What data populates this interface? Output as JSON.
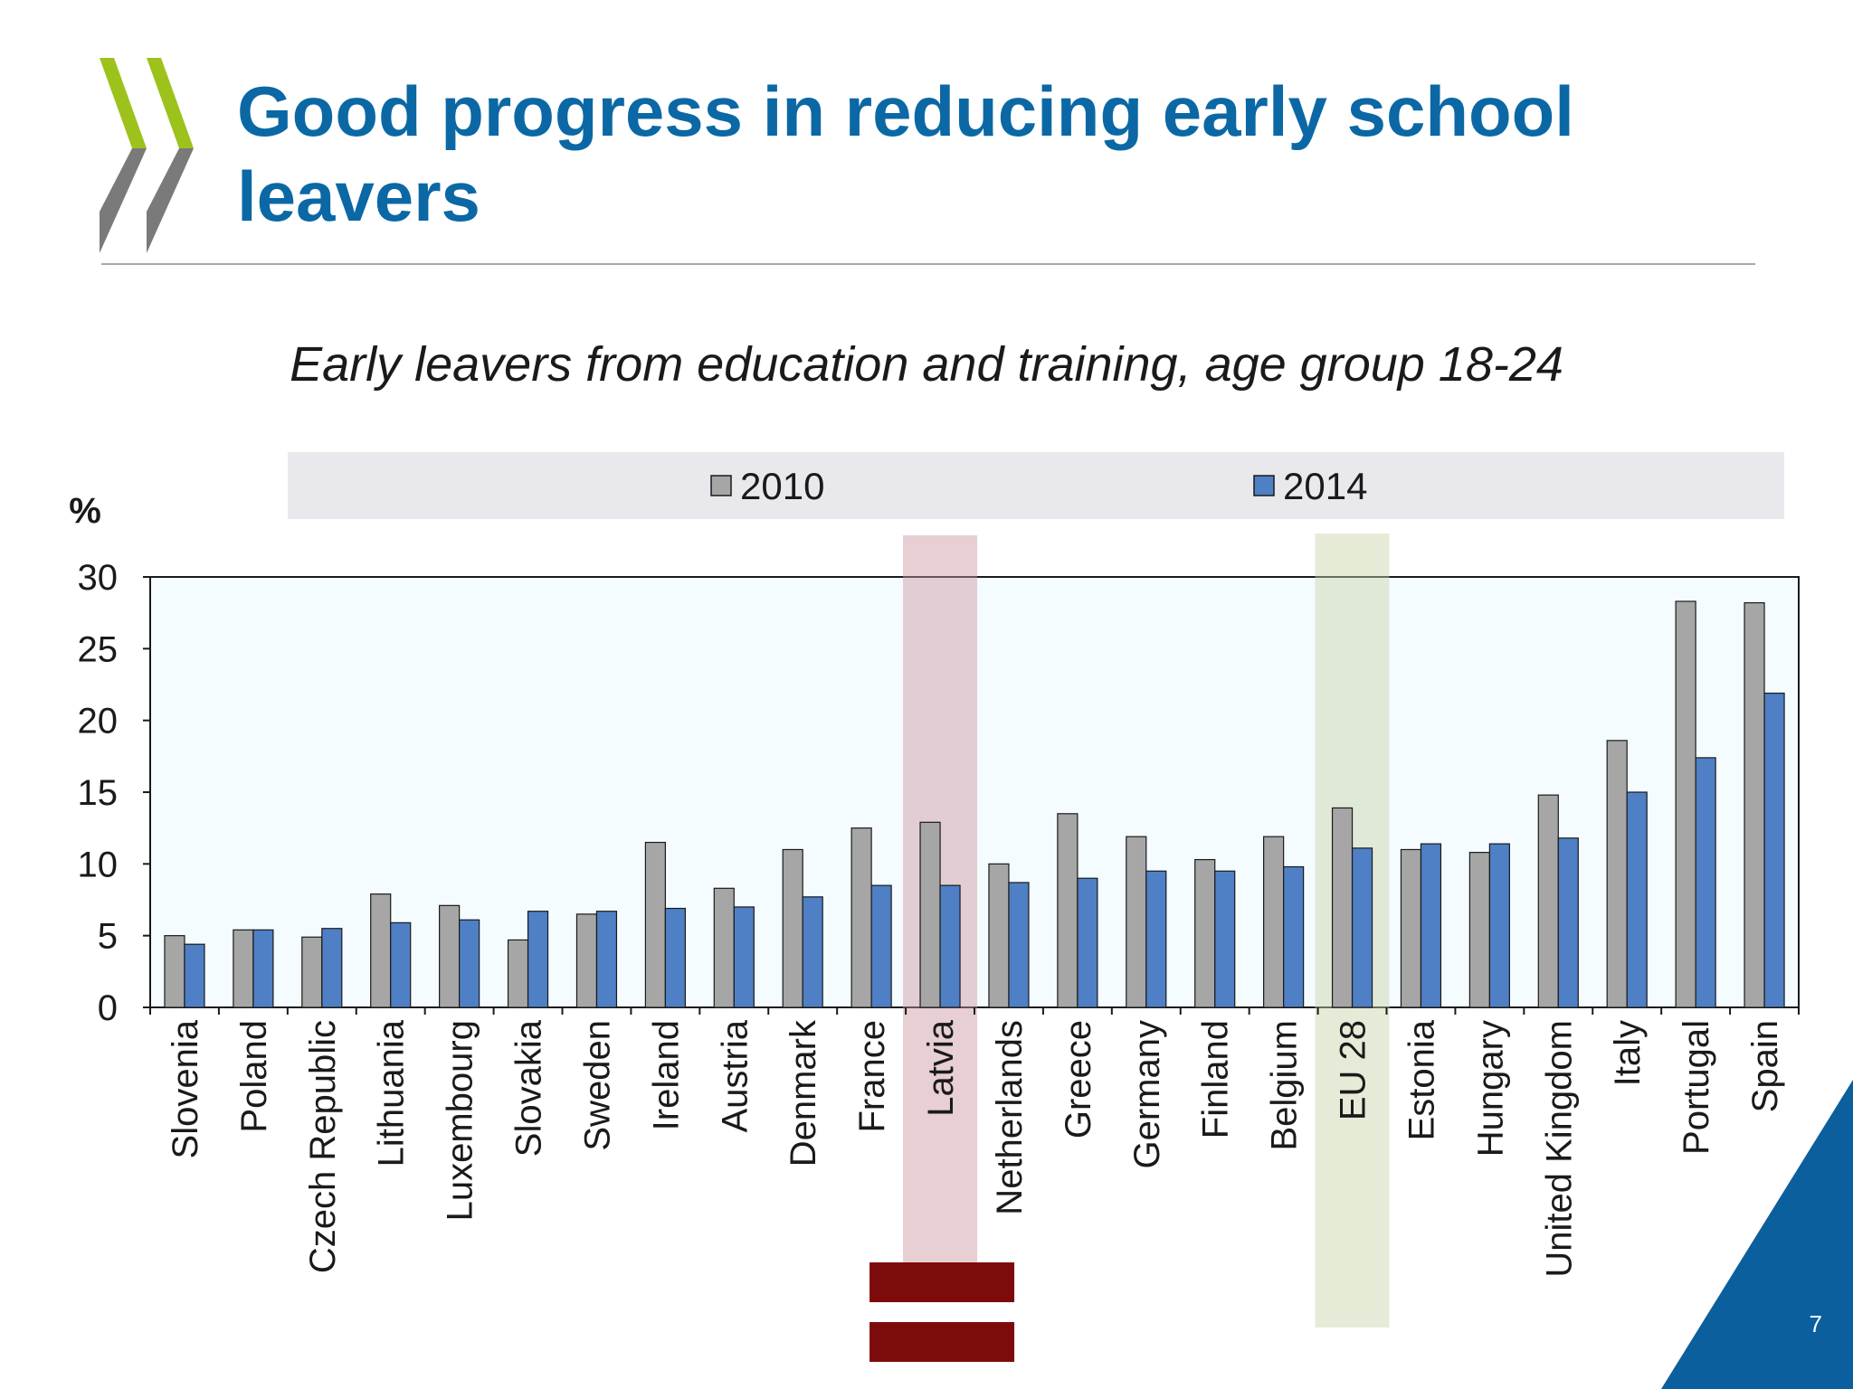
{
  "slide": {
    "title": "Good progress in reducing early school leavers",
    "subtitle": "Early leavers from education and training, age group 18-24",
    "slide_number": "7",
    "logo_icon": "oecd-chevrons-logo-icon",
    "flag_icon": "latvia-flag-icon"
  },
  "colors": {
    "title": "#0b68a5",
    "series_2010": "#a6a6a6",
    "series_2014": "#4f7fc4",
    "plot_background": "#f4fcff",
    "legend_background": "#e9e8ec",
    "highlight_latvia": "#c9959e",
    "highlight_eu28": "#c7d2a9",
    "flag_red": "#7e0b0b",
    "corner_triangle": "#0b5f9c"
  },
  "chart_data": {
    "type": "bar",
    "title": "Early leavers from education and training, age group 18-24",
    "ylabel": "%",
    "xlabel": "",
    "ylim": [
      0,
      30
    ],
    "yticks": [
      "0",
      "5",
      "10",
      "15",
      "20",
      "25",
      "30"
    ],
    "grid": false,
    "legend": "top",
    "categories": [
      "Slovenia",
      "Poland",
      "Czech Republic",
      "Lithuania",
      "Luxembourg",
      "Slovakia",
      "Sweden",
      "Ireland",
      "Austria",
      "Denmark",
      "France",
      "Latvia",
      "Netherlands",
      "Greece",
      "Germany",
      "Finland",
      "Belgium",
      "EU 28",
      "Estonia",
      "Hungary",
      "United Kingdom",
      "Italy",
      "Portugal",
      "Spain"
    ],
    "highlighted": [
      "Latvia",
      "EU 28"
    ],
    "series": [
      {
        "name": "2010",
        "values": [
          5.0,
          5.4,
          4.9,
          7.9,
          7.1,
          4.7,
          6.5,
          11.5,
          8.3,
          11.0,
          12.5,
          12.9,
          10.0,
          13.5,
          11.9,
          10.3,
          11.9,
          13.9,
          11.0,
          10.8,
          14.8,
          18.6,
          28.3,
          28.2
        ]
      },
      {
        "name": "2014",
        "values": [
          4.4,
          5.4,
          5.5,
          5.9,
          6.1,
          6.7,
          6.7,
          6.9,
          7.0,
          7.7,
          8.5,
          8.5,
          8.7,
          9.0,
          9.5,
          9.5,
          9.8,
          11.1,
          11.4,
          11.4,
          11.8,
          15.0,
          17.4,
          21.9
        ]
      }
    ]
  }
}
